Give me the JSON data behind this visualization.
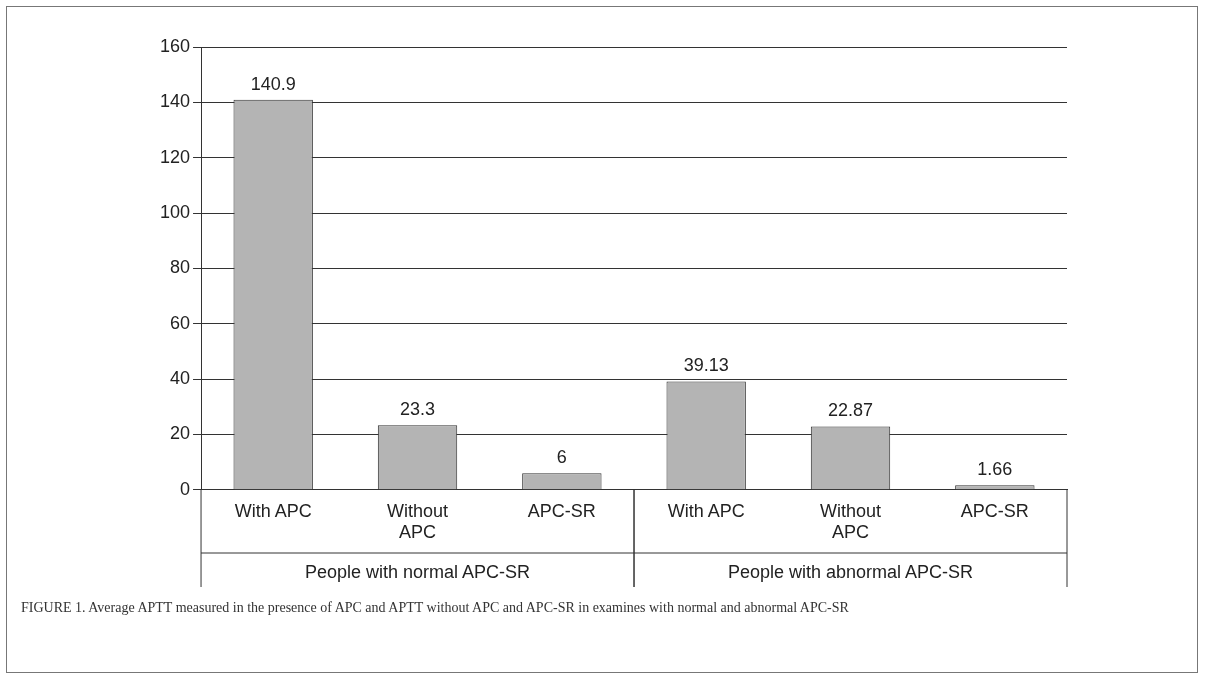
{
  "chart_data": {
    "type": "bar",
    "categories": [
      "With APC",
      "Without APC",
      "APC-SR",
      "With APC",
      "Without APC",
      "APC-SR"
    ],
    "values": [
      140.9,
      23.3,
      6,
      39.13,
      22.87,
      1.66
    ],
    "color": "#b4b4b4",
    "ylim": [
      0,
      160
    ],
    "yticks": [
      0,
      20,
      40,
      60,
      80,
      100,
      120,
      140,
      160
    ],
    "grid": "y",
    "data_labels": true,
    "annotations": [
      "People with normal APC-SR",
      "People with abnormal APC-SR",
      "FIGURE 1. Average APTT measured in the presence of APC and APTT without APC and APC-SR in examines with normal and abnormal APC-SR"
    ]
  }
}
